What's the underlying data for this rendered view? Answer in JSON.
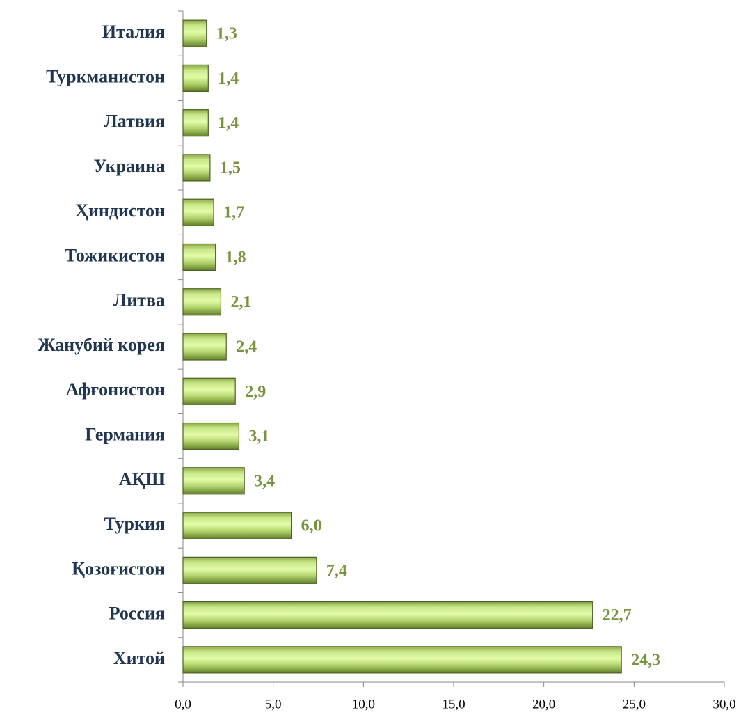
{
  "chart_data": {
    "type": "bar",
    "orientation": "horizontal",
    "categories": [
      "Италия",
      "Туркманистон",
      "Латвия",
      "Украина",
      "Ҳиндистон",
      "Тожикистон",
      "Литва",
      "Жанубий корея",
      "Афғонистон",
      "Германия",
      "АҚШ",
      "Туркия",
      "Қозоғистон",
      "Россия",
      "Хитой"
    ],
    "values": [
      1.3,
      1.4,
      1.4,
      1.5,
      1.7,
      1.8,
      2.1,
      2.4,
      2.9,
      3.1,
      3.4,
      6.0,
      7.4,
      22.7,
      24.3
    ],
    "value_labels": [
      "1,3",
      "1,4",
      "1,4",
      "1,5",
      "1,7",
      "1,8",
      "2,1",
      "2,4",
      "2,9",
      "3,1",
      "3,4",
      "6,0",
      "7,4",
      "22,7",
      "24,3"
    ],
    "color": "#9bbb59",
    "xlim": [
      0,
      30
    ],
    "xticks": [
      {
        "value": 0,
        "label": "0,0"
      },
      {
        "value": 5,
        "label": "5,0"
      },
      {
        "value": 10,
        "label": "10,0"
      },
      {
        "value": 15,
        "label": "15,0"
      },
      {
        "value": 20,
        "label": "20,0"
      },
      {
        "value": 25,
        "label": "25,0"
      },
      {
        "value": 30,
        "label": "30,0"
      }
    ],
    "grid": false
  }
}
